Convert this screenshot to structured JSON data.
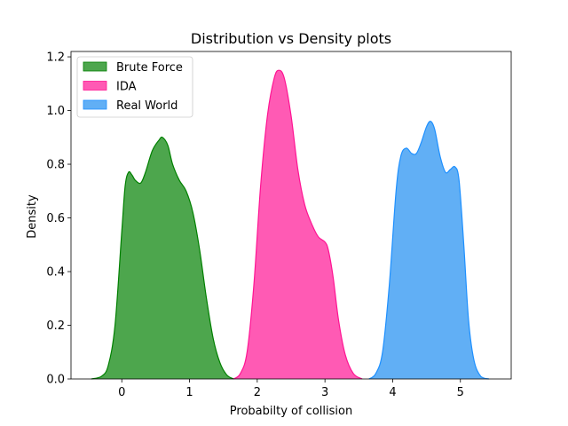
{
  "chart_data": {
    "type": "area",
    "title": "Distribution vs Density plots",
    "xlabel": "Probabilty of collision",
    "ylabel": "Density",
    "xlim": [
      -0.75,
      5.75
    ],
    "ylim": [
      0,
      1.22
    ],
    "xticks": [
      0,
      1,
      2,
      3,
      4,
      5
    ],
    "yticks": [
      0.0,
      0.2,
      0.4,
      0.6,
      0.8,
      1.0,
      1.2
    ],
    "legend_position": "top-left",
    "grid": false,
    "series": [
      {
        "name": "Brute Force",
        "fill": "#4da64d",
        "stroke": "#008000",
        "points": [
          [
            -0.45,
            0
          ],
          [
            -0.3,
            0.01
          ],
          [
            -0.2,
            0.05
          ],
          [
            -0.1,
            0.2
          ],
          [
            0.0,
            0.55
          ],
          [
            0.05,
            0.72
          ],
          [
            0.1,
            0.77
          ],
          [
            0.15,
            0.76
          ],
          [
            0.2,
            0.74
          ],
          [
            0.28,
            0.73
          ],
          [
            0.35,
            0.77
          ],
          [
            0.45,
            0.85
          ],
          [
            0.55,
            0.89
          ],
          [
            0.6,
            0.9
          ],
          [
            0.68,
            0.87
          ],
          [
            0.75,
            0.8
          ],
          [
            0.85,
            0.74
          ],
          [
            0.95,
            0.7
          ],
          [
            1.05,
            0.62
          ],
          [
            1.15,
            0.48
          ],
          [
            1.25,
            0.3
          ],
          [
            1.35,
            0.15
          ],
          [
            1.45,
            0.06
          ],
          [
            1.55,
            0.015
          ],
          [
            1.65,
            0
          ]
        ]
      },
      {
        "name": "IDA",
        "fill": "#ff5ab4",
        "stroke": "#ff1493",
        "points": [
          [
            1.65,
            0
          ],
          [
            1.75,
            0.02
          ],
          [
            1.85,
            0.1
          ],
          [
            1.95,
            0.35
          ],
          [
            2.05,
            0.72
          ],
          [
            2.15,
            0.98
          ],
          [
            2.25,
            1.12
          ],
          [
            2.32,
            1.15
          ],
          [
            2.4,
            1.12
          ],
          [
            2.5,
            0.98
          ],
          [
            2.6,
            0.78
          ],
          [
            2.7,
            0.65
          ],
          [
            2.8,
            0.58
          ],
          [
            2.9,
            0.53
          ],
          [
            3.0,
            0.51
          ],
          [
            3.05,
            0.48
          ],
          [
            3.12,
            0.38
          ],
          [
            3.2,
            0.22
          ],
          [
            3.3,
            0.09
          ],
          [
            3.42,
            0.02
          ],
          [
            3.55,
            0
          ]
        ]
      },
      {
        "name": "Real World",
        "fill": "#61aff5",
        "stroke": "#1e90ff",
        "points": [
          [
            3.65,
            0
          ],
          [
            3.75,
            0.02
          ],
          [
            3.85,
            0.1
          ],
          [
            3.95,
            0.35
          ],
          [
            4.05,
            0.7
          ],
          [
            4.12,
            0.83
          ],
          [
            4.2,
            0.86
          ],
          [
            4.28,
            0.84
          ],
          [
            4.35,
            0.84
          ],
          [
            4.42,
            0.88
          ],
          [
            4.5,
            0.94
          ],
          [
            4.56,
            0.96
          ],
          [
            4.62,
            0.93
          ],
          [
            4.7,
            0.83
          ],
          [
            4.78,
            0.77
          ],
          [
            4.85,
            0.78
          ],
          [
            4.92,
            0.79
          ],
          [
            4.98,
            0.74
          ],
          [
            5.05,
            0.5
          ],
          [
            5.12,
            0.22
          ],
          [
            5.2,
            0.07
          ],
          [
            5.3,
            0.01
          ],
          [
            5.42,
            0
          ]
        ]
      }
    ]
  }
}
